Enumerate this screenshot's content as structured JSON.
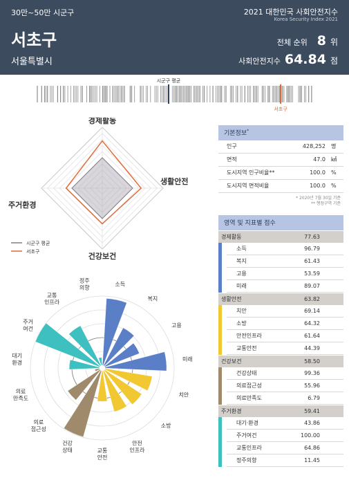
{
  "header": {
    "category": "30만~50만 시군구",
    "name": "서초구",
    "province": "서울특별시",
    "index_title": "2021 대한민국 사회안전지수",
    "index_subtitle": "Korea Security Index 2021",
    "rank_label": "전체 순위",
    "rank_value": "8",
    "rank_unit": "위",
    "score_label": "사회안전지수",
    "score_value": "64.84",
    "score_unit": "점"
  },
  "strip": {
    "avg_label": "시군구 평균",
    "self_label": "서초구"
  },
  "colors": {
    "header_bg": "#3c4b5e",
    "self": "#e06a3a",
    "avg": "#8a8592",
    "economy": "#5b7fc7",
    "safety": "#f2c832",
    "health": "#9f8b6c",
    "housing": "#3ec0c0"
  },
  "legend": {
    "avg": "시군구 평균",
    "self": "서초구"
  },
  "basic_info": {
    "title": "기본정보",
    "title_mark": "*",
    "rows": [
      {
        "label": "인구",
        "value": "428,252",
        "unit": "명"
      },
      {
        "label": "면적",
        "value": "47.0",
        "unit": "㎢"
      },
      {
        "label": "도시지역 인구비율**",
        "value": "100.0",
        "unit": "%"
      },
      {
        "label": "도시지역 면적비율",
        "value": "100.0",
        "unit": "%"
      }
    ],
    "notes": [
      "* 2020년 7월 30일 기준",
      "** 행정구역 기준"
    ]
  },
  "scores": {
    "title": "영역 및 지표별 점수",
    "groups": [
      {
        "name": "경제활동",
        "score": "77.63",
        "color": "#5b7fc7",
        "items": [
          {
            "name": "소득",
            "score": "96.79"
          },
          {
            "name": "복지",
            "score": "61.43"
          },
          {
            "name": "고용",
            "score": "53.59"
          },
          {
            "name": "미래",
            "score": "89.07"
          }
        ]
      },
      {
        "name": "생활안전",
        "score": "63.82",
        "color": "#f2c832",
        "items": [
          {
            "name": "치안",
            "score": "69.14"
          },
          {
            "name": "소방",
            "score": "64.32"
          },
          {
            "name": "안전인프라",
            "score": "61.64"
          },
          {
            "name": "교통안전",
            "score": "44.39"
          }
        ]
      },
      {
        "name": "건강보건",
        "score": "58.50",
        "color": "#9f8b6c",
        "items": [
          {
            "name": "건강상태",
            "score": "99.36"
          },
          {
            "name": "의료접근성",
            "score": "55.96"
          },
          {
            "name": "의료만족도",
            "score": "6.79"
          }
        ]
      },
      {
        "name": "주거환경",
        "score": "59.41",
        "color": "#3ec0c0",
        "items": [
          {
            "name": "대기·환경",
            "score": "43.86"
          },
          {
            "name": "주거여건",
            "score": "100.00"
          },
          {
            "name": "교통인프라",
            "score": "64.86"
          },
          {
            "name": "정주의향",
            "score": "11.45"
          }
        ]
      }
    ]
  },
  "chart_data": [
    {
      "type": "radar",
      "axes": [
        "경제활동",
        "생활안전",
        "건강보건",
        "주거환경"
      ],
      "series": [
        {
          "name": "서초구",
          "values": [
            77.63,
            63.82,
            58.5,
            59.41
          ]
        },
        {
          "name": "시군구 평균",
          "values": [
            50,
            50,
            50,
            50
          ]
        }
      ],
      "range": [
        0,
        100
      ]
    },
    {
      "type": "polar-bar",
      "range": [
        0,
        100
      ],
      "categories": [
        "소득",
        "복지",
        "고용",
        "미래",
        "치안",
        "소방",
        "안전 인프라",
        "교통 안전",
        "건강 상태",
        "의료 접근성",
        "의료 만족도",
        "대기 환경",
        "주거 여건",
        "교통 인프라",
        "정주 의향"
      ],
      "values": [
        96.79,
        61.43,
        53.59,
        89.07,
        69.14,
        64.32,
        61.64,
        44.39,
        99.36,
        55.96,
        6.79,
        43.86,
        100.0,
        64.86,
        11.45
      ],
      "groups": [
        "economy",
        "economy",
        "economy",
        "economy",
        "safety",
        "safety",
        "safety",
        "safety",
        "health",
        "health",
        "health",
        "housing",
        "housing",
        "housing",
        "housing"
      ]
    }
  ]
}
